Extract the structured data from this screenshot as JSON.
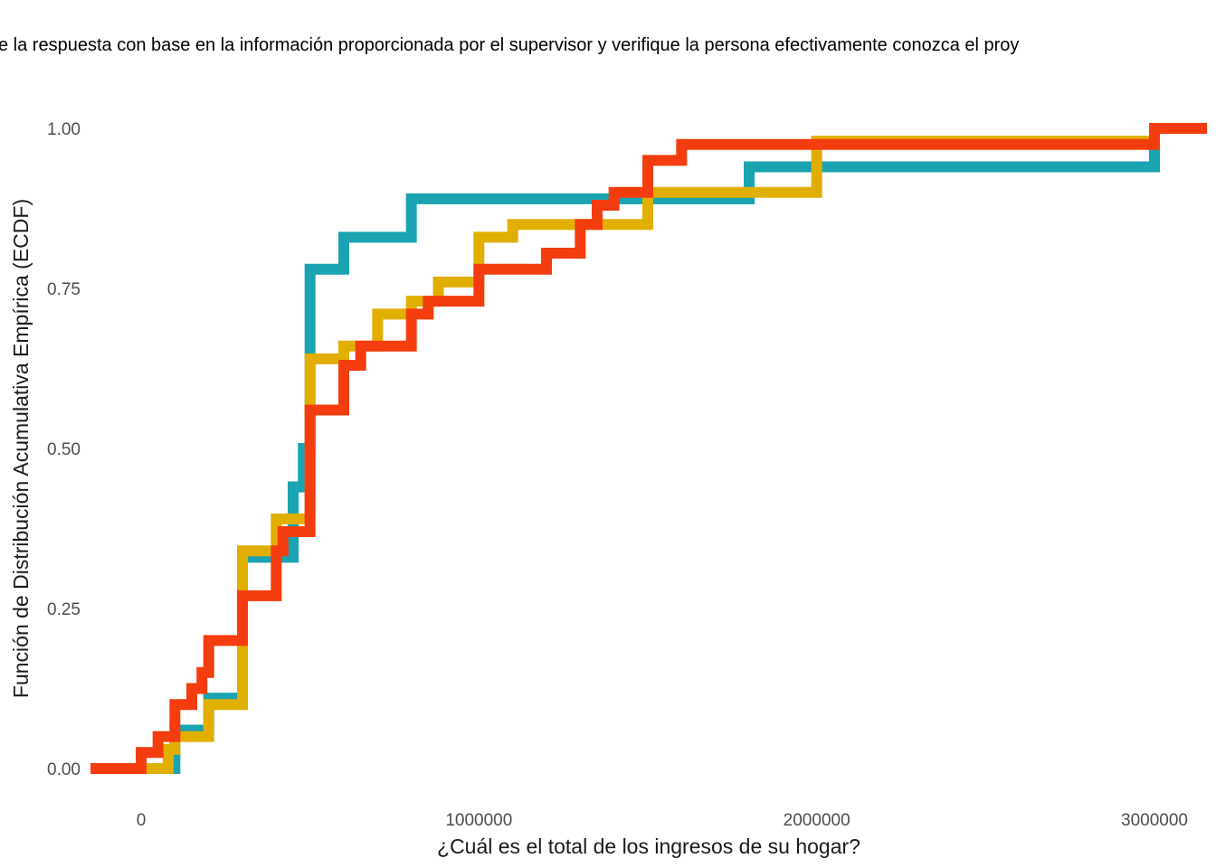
{
  "chart_data": {
    "type": "line",
    "step": true,
    "title": "e la respuesta con base en la información proporcionada por el supervisor y verifique la persona efectivamente conozca el proy",
    "xlabel": "¿Cuál es el total de los ingresos de su hogar?",
    "ylabel": "Función de Distribución Acumulativa Empírica (ECDF)",
    "xlim": [
      -150000,
      3150000
    ],
    "ylim": [
      0,
      1
    ],
    "x_ticks": [
      {
        "value": 0,
        "label": "0"
      },
      {
        "value": 1000000,
        "label": "1000000"
      },
      {
        "value": 2000000,
        "label": "2000000"
      },
      {
        "value": 3000000,
        "label": "3000000"
      }
    ],
    "y_ticks": [
      {
        "value": 0,
        "label": "0.00"
      },
      {
        "value": 0.25,
        "label": "0.25"
      },
      {
        "value": 0.5,
        "label": "0.50"
      },
      {
        "value": 0.75,
        "label": "0.75"
      },
      {
        "value": 1,
        "label": "1.00"
      }
    ],
    "grid": false,
    "legend": "none",
    "series": [
      {
        "color": "#1AA3B0",
        "points": [
          [
            100000,
            0.06
          ],
          [
            200000,
            0.11
          ],
          [
            300000,
            0.33
          ],
          [
            450000,
            0.44
          ],
          [
            480000,
            0.5
          ],
          [
            500000,
            0.78
          ],
          [
            600000,
            0.83
          ],
          [
            800000,
            0.89
          ],
          [
            1800000,
            0.94
          ],
          [
            3000000,
            1.0
          ]
        ]
      },
      {
        "color": "#E1AF00",
        "points": [
          [
            80000,
            0.03
          ],
          [
            100000,
            0.05
          ],
          [
            200000,
            0.1
          ],
          [
            300000,
            0.34
          ],
          [
            400000,
            0.39
          ],
          [
            500000,
            0.64
          ],
          [
            600000,
            0.66
          ],
          [
            700000,
            0.71
          ],
          [
            800000,
            0.73
          ],
          [
            880000,
            0.76
          ],
          [
            1000000,
            0.83
          ],
          [
            1100000,
            0.85
          ],
          [
            1500000,
            0.9
          ],
          [
            2000000,
            0.98
          ],
          [
            3000000,
            1.0
          ]
        ]
      },
      {
        "color": "#F43D0E",
        "points": [
          [
            0,
            0.025
          ],
          [
            50000,
            0.05
          ],
          [
            100000,
            0.1
          ],
          [
            150000,
            0.125
          ],
          [
            180000,
            0.15
          ],
          [
            200000,
            0.2
          ],
          [
            300000,
            0.27
          ],
          [
            400000,
            0.34
          ],
          [
            420000,
            0.37
          ],
          [
            500000,
            0.56
          ],
          [
            600000,
            0.63
          ],
          [
            650000,
            0.66
          ],
          [
            800000,
            0.71
          ],
          [
            850000,
            0.73
          ],
          [
            1000000,
            0.78
          ],
          [
            1200000,
            0.805
          ],
          [
            1300000,
            0.85
          ],
          [
            1350000,
            0.88
          ],
          [
            1400000,
            0.9
          ],
          [
            1500000,
            0.95
          ],
          [
            1600000,
            0.975
          ],
          [
            3000000,
            1.0
          ]
        ]
      }
    ]
  }
}
